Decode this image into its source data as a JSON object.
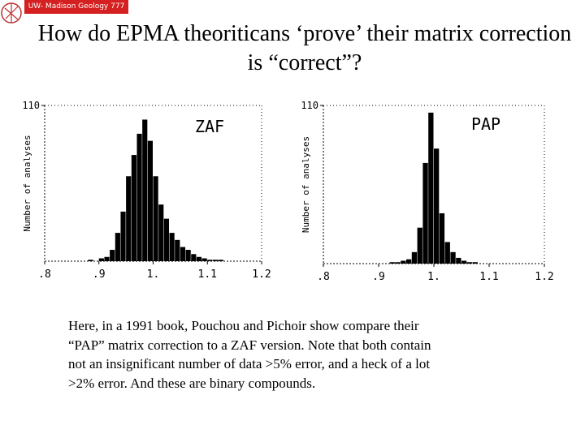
{
  "header": {
    "badge": "UW- Madison Geology  777"
  },
  "title": "How do EPMA theoriticans ‘prove’ their matrix correction is “correct”?",
  "chart_data": [
    {
      "type": "histogram",
      "label": "ZAF",
      "y_label": "Number of analyses",
      "color": "#000000",
      "bins": [
        0.8,
        0.81,
        0.82,
        0.83,
        0.84,
        0.85,
        0.86,
        0.87,
        0.88,
        0.89,
        0.9,
        0.91,
        0.92,
        0.93,
        0.94,
        0.95,
        0.96,
        0.97,
        0.98,
        0.99,
        1.0,
        1.01,
        1.02,
        1.03,
        1.04,
        1.05,
        1.06,
        1.07,
        1.08,
        1.09,
        1.1,
        1.11,
        1.12,
        1.13,
        1.14,
        1.15,
        1.16,
        1.17,
        1.18,
        1.19,
        1.2
      ],
      "counts": [
        0,
        0,
        0,
        0,
        0,
        0,
        0,
        0,
        1,
        0,
        2,
        3,
        8,
        20,
        35,
        60,
        75,
        90,
        100,
        85,
        60,
        40,
        30,
        20,
        15,
        10,
        8,
        5,
        3,
        2,
        1,
        1,
        1,
        0,
        0,
        0,
        0,
        0,
        0,
        0
      ],
      "xlim": [
        0.8,
        1.2
      ],
      "ylim": [
        0,
        110
      ],
      "xticks": [
        {
          "value": 0.8,
          "label": ".8"
        },
        {
          "value": 0.9,
          "label": ".9"
        },
        {
          "value": 1.0,
          "label": "1."
        },
        1.1,
        1.2
      ],
      "yticks": [
        110
      ]
    },
    {
      "type": "histogram",
      "label": "PAP",
      "y_label": "Number of analyses",
      "color": "#000000",
      "bins": [
        0.8,
        0.81,
        0.82,
        0.83,
        0.84,
        0.85,
        0.86,
        0.87,
        0.88,
        0.89,
        0.9,
        0.91,
        0.92,
        0.93,
        0.94,
        0.95,
        0.96,
        0.97,
        0.98,
        0.99,
        1.0,
        1.01,
        1.02,
        1.03,
        1.04,
        1.05,
        1.06,
        1.07,
        1.08,
        1.09,
        1.1,
        1.11,
        1.12,
        1.13,
        1.14,
        1.15,
        1.16,
        1.17,
        1.18,
        1.19,
        1.2
      ],
      "counts": [
        0,
        0,
        0,
        0,
        0,
        0,
        0,
        0,
        0,
        0,
        0,
        0,
        1,
        1,
        2,
        3,
        8,
        25,
        70,
        105,
        80,
        35,
        15,
        8,
        4,
        2,
        1,
        1,
        0,
        0,
        0,
        0,
        0,
        0,
        0,
        0,
        0,
        0,
        0,
        0
      ],
      "xlim": [
        0.8,
        1.2
      ],
      "ylim": [
        0,
        110
      ],
      "xticks": [
        {
          "value": 0.8,
          "label": ".8"
        },
        {
          "value": 0.9,
          "label": ".9"
        },
        {
          "value": 1.0,
          "label": "1."
        },
        1.1,
        1.2
      ],
      "yticks": [
        110
      ]
    }
  ],
  "body": [
    "Here, in a 1991 book, Pouchou and Pichoir show compare their",
    "“PAP” matrix correction to a ZAF version. Note that both contain",
    "not  an insignificant number of  data >5% error, and a heck of a lot",
    ">2% error. And these are binary compounds."
  ]
}
